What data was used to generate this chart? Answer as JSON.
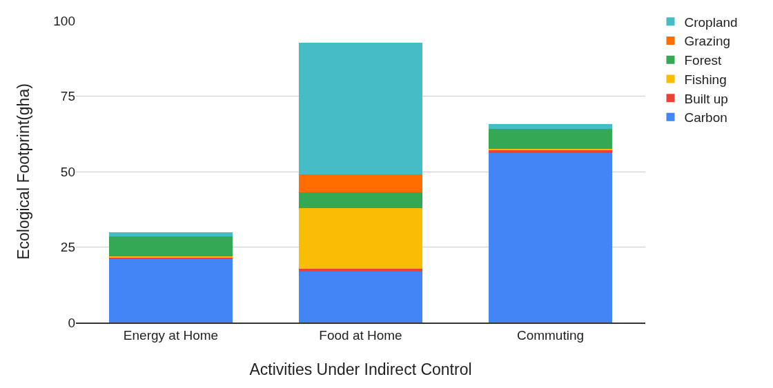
{
  "chart_data": {
    "type": "bar",
    "stacked": true,
    "xlabel": "Activities Under Indirect Control",
    "ylabel": "Ecological Footprint(gha)",
    "categories": [
      "Energy at Home",
      "Food at Home",
      "Commuting"
    ],
    "series": [
      {
        "name": "Carbon",
        "color": "#4285f4",
        "values": [
          21.2,
          16.8,
          56.2
        ]
      },
      {
        "name": "Built up",
        "color": "#ea4335",
        "values": [
          0.4,
          0.9,
          0.9
        ]
      },
      {
        "name": "Fishing",
        "color": "#fbbc04",
        "values": [
          0.4,
          20.2,
          0.5
        ]
      },
      {
        "name": "Forest",
        "color": "#34a853",
        "values": [
          6.5,
          5.2,
          6.5
        ]
      },
      {
        "name": "Grazing",
        "color": "#ff6d01",
        "values": [
          0,
          6.1,
          0
        ]
      },
      {
        "name": "Cropland",
        "color": "#46bdc6",
        "values": [
          1.3,
          43.5,
          1.7
        ]
      }
    ],
    "ylim": [
      0,
      100
    ],
    "yticks": [
      0,
      25,
      50,
      75,
      100
    ],
    "grid": "y",
    "legend": "top right"
  }
}
